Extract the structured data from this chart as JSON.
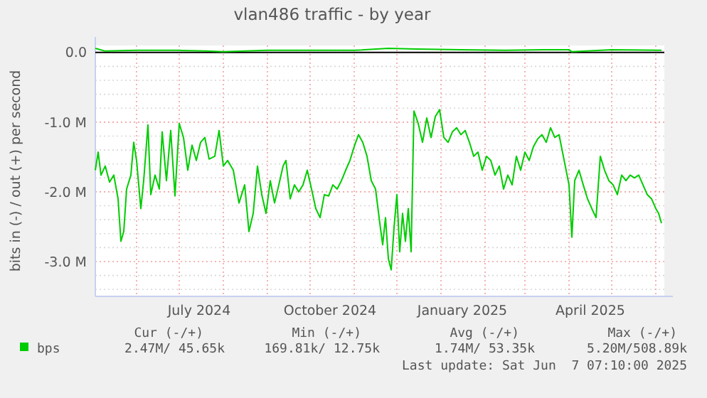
{
  "chart_data": {
    "type": "line",
    "title": "vlan486 traffic - by year",
    "ylabel": "bits in (-) / out (+) per second",
    "xlim": [
      "2024-05-03",
      "2025-06-07"
    ],
    "xticks": [
      {
        "value": "2024-06-01",
        "label": null
      },
      {
        "value": "2024-07-01",
        "label": null
      },
      {
        "value": "2024-07-15",
        "label": "July 2024"
      },
      {
        "value": "2024-08-01",
        "label": null
      },
      {
        "value": "2024-09-01",
        "label": null
      },
      {
        "value": "2024-10-01",
        "label": null
      },
      {
        "value": "2024-10-15",
        "label": "October 2024"
      },
      {
        "value": "2024-11-01",
        "label": null
      },
      {
        "value": "2024-12-01",
        "label": null
      },
      {
        "value": "2025-01-01",
        "label": null
      },
      {
        "value": "2025-01-16",
        "label": "January 2025"
      },
      {
        "value": "2025-02-01",
        "label": null
      },
      {
        "value": "2025-03-01",
        "label": null
      },
      {
        "value": "2025-04-01",
        "label": null
      },
      {
        "value": "2025-04-16",
        "label": "April 2025"
      },
      {
        "value": "2025-05-01",
        "label": null
      },
      {
        "value": "2025-06-01",
        "label": null
      }
    ],
    "ylim": [
      -3.5,
      0.1
    ],
    "yticks": [
      {
        "value": -3.4,
        "label": null
      },
      {
        "value": -3.2,
        "label": null
      },
      {
        "value": -3,
        "label": "-3.0 M"
      },
      {
        "value": -2.8,
        "label": null
      },
      {
        "value": -2.6,
        "label": null
      },
      {
        "value": -2.4,
        "label": null
      },
      {
        "value": -2.2,
        "label": null
      },
      {
        "value": -2,
        "label": "-2.0 M"
      },
      {
        "value": -1.8,
        "label": null
      },
      {
        "value": -1.6,
        "label": null
      },
      {
        "value": -1.4,
        "label": null
      },
      {
        "value": -1.2,
        "label": null
      },
      {
        "value": -1,
        "label": "-1.0 M"
      },
      {
        "value": -0.8,
        "label": null
      },
      {
        "value": -0.6,
        "label": null
      },
      {
        "value": -0.4,
        "label": null
      },
      {
        "value": -0.2,
        "label": null
      },
      {
        "value": 0,
        "label": "0.0"
      }
    ],
    "grid": true,
    "legend": "bottom",
    "series": [
      {
        "name": "bps",
        "color": "#00cc00",
        "x": [
          "2024-05-03",
          "2024-05-05",
          "2024-05-07",
          "2024-05-10",
          "2024-05-13",
          "2024-05-16",
          "2024-05-19",
          "2024-05-21",
          "2024-05-23",
          "2024-05-25",
          "2024-05-28",
          "2024-05-30",
          "2024-06-01",
          "2024-06-04",
          "2024-06-06",
          "2024-06-09",
          "2024-06-11",
          "2024-06-14",
          "2024-06-17",
          "2024-06-19",
          "2024-06-22",
          "2024-06-25",
          "2024-06-28",
          "2024-07-01",
          "2024-07-04",
          "2024-07-07",
          "2024-07-10",
          "2024-07-13",
          "2024-07-16",
          "2024-07-19",
          "2024-07-22",
          "2024-07-26",
          "2024-07-29",
          "2024-08-01",
          "2024-08-04",
          "2024-08-08",
          "2024-08-12",
          "2024-08-16",
          "2024-08-19",
          "2024-08-22",
          "2024-08-25",
          "2024-08-28",
          "2024-08-31",
          "2024-09-03",
          "2024-09-06",
          "2024-09-09",
          "2024-09-12",
          "2024-09-14",
          "2024-09-17",
          "2024-09-20",
          "2024-09-23",
          "2024-09-26",
          "2024-09-29",
          "2024-10-02",
          "2024-10-05",
          "2024-10-08",
          "2024-10-11",
          "2024-10-14",
          "2024-10-17",
          "2024-10-20",
          "2024-10-23",
          "2024-10-26",
          "2024-10-29",
          "2024-11-01",
          "2024-11-04",
          "2024-11-07",
          "2024-11-10",
          "2024-11-13",
          "2024-11-16",
          "2024-11-19",
          "2024-11-21",
          "2024-11-23",
          "2024-11-25",
          "2024-11-27",
          "2024-11-29",
          "2024-12-01",
          "2024-12-03",
          "2024-12-05",
          "2024-12-07",
          "2024-12-09",
          "2024-12-11",
          "2024-12-13",
          "2024-12-16",
          "2024-12-19",
          "2024-12-22",
          "2024-12-25",
          "2024-12-28",
          "2024-12-31",
          "2025-01-03",
          "2025-01-06",
          "2025-01-09",
          "2025-01-12",
          "2025-01-15",
          "2025-01-18",
          "2025-01-21",
          "2025-01-24",
          "2025-01-27",
          "2025-01-30",
          "2025-02-02",
          "2025-02-05",
          "2025-02-08",
          "2025-02-11",
          "2025-02-14",
          "2025-02-17",
          "2025-02-20",
          "2025-02-23",
          "2025-02-26",
          "2025-03-01",
          "2025-03-04",
          "2025-03-07",
          "2025-03-10",
          "2025-03-13",
          "2025-03-16",
          "2025-03-19",
          "2025-03-22",
          "2025-03-25",
          "2025-03-28",
          "2025-04-01",
          "2025-04-03",
          "2025-04-05",
          "2025-04-08",
          "2025-04-11",
          "2025-04-14",
          "2025-04-17",
          "2025-04-20",
          "2025-04-23",
          "2025-04-26",
          "2025-04-29",
          "2025-05-02",
          "2025-05-05",
          "2025-05-08",
          "2025-05-11",
          "2025-05-14",
          "2025-05-17",
          "2025-05-20",
          "2025-05-23",
          "2025-05-26",
          "2025-05-29",
          "2025-06-01",
          "2025-06-03",
          "2025-06-05"
        ],
        "values": [
          -1.69,
          -1.43,
          -1.76,
          -1.63,
          -1.86,
          -1.76,
          -2.1,
          -2.71,
          -2.57,
          -1.96,
          -1.76,
          -1.29,
          -1.55,
          -2.24,
          -1.84,
          -1.04,
          -2.04,
          -1.76,
          -1.96,
          -1.14,
          -1.84,
          -1.12,
          -2.06,
          -1.02,
          -1.22,
          -1.69,
          -1.33,
          -1.55,
          -1.29,
          -1.22,
          -1.53,
          -1.49,
          -1.12,
          -1.63,
          -1.55,
          -1.69,
          -2.16,
          -1.9,
          -2.57,
          -2.31,
          -1.63,
          -2.04,
          -2.31,
          -1.84,
          -2.16,
          -1.9,
          -1.63,
          -1.55,
          -2.1,
          -1.9,
          -2,
          -1.9,
          -1.69,
          -1.96,
          -2.24,
          -2.37,
          -2.04,
          -2.06,
          -1.9,
          -1.96,
          -1.84,
          -1.69,
          -1.55,
          -1.35,
          -1.18,
          -1.29,
          -1.49,
          -1.84,
          -1.96,
          -2.45,
          -2.76,
          -2.37,
          -2.96,
          -3.12,
          -2.51,
          -2.04,
          -2.86,
          -2.31,
          -2.71,
          -2.24,
          -2.86,
          -0.84,
          -1.02,
          -1.29,
          -0.94,
          -1.22,
          -0.92,
          -0.82,
          -1.22,
          -1.29,
          -1.14,
          -1.08,
          -1.18,
          -1.12,
          -1.29,
          -1.49,
          -1.43,
          -1.69,
          -1.49,
          -1.55,
          -1.76,
          -1.63,
          -1.96,
          -1.76,
          -1.9,
          -1.49,
          -1.69,
          -1.43,
          -1.55,
          -1.35,
          -1.24,
          -1.18,
          -1.29,
          -1.08,
          -1.22,
          -1.18,
          -1.49,
          -1.9,
          -2.65,
          -1.84,
          -1.69,
          -1.9,
          -2.1,
          -2.24,
          -2.37,
          -1.49,
          -1.69,
          -1.84,
          -1.9,
          -2.04,
          -1.76,
          -1.84,
          -1.76,
          -1.8,
          -1.76,
          -1.9,
          -2.04,
          -2.1,
          -2.24,
          -2.31,
          -2.45
        ]
      },
      {
        "color": "#00cc00",
        "x": [
          "2024-05-03",
          "2024-05-10",
          "2024-06-01",
          "2024-07-01",
          "2024-07-20",
          "2024-08-01",
          "2024-09-01",
          "2024-10-01",
          "2024-11-01",
          "2024-11-25",
          "2024-12-15",
          "2025-01-15",
          "2025-02-15",
          "2025-03-15",
          "2025-04-01",
          "2025-04-03",
          "2025-05-01",
          "2025-06-05"
        ],
        "values": [
          0.06,
          0.02,
          0.03,
          0.03,
          0.02,
          0.01,
          0.03,
          0.03,
          0.03,
          0.06,
          0.05,
          0.04,
          0.03,
          0.04,
          0.04,
          0.01,
          0.04,
          0.03
        ]
      }
    ],
    "annotations": [
      "Cur (-/+)",
      "Min (-/+)",
      "Avg (-/+)",
      "Max (-/+)",
      "2.47M/ 45.65k",
      "169.81k/ 12.75k",
      "1.74M/ 53.35k",
      "5.20M/508.89k",
      "Last update: Sat Jun  7 07:10:00 2025"
    ]
  }
}
